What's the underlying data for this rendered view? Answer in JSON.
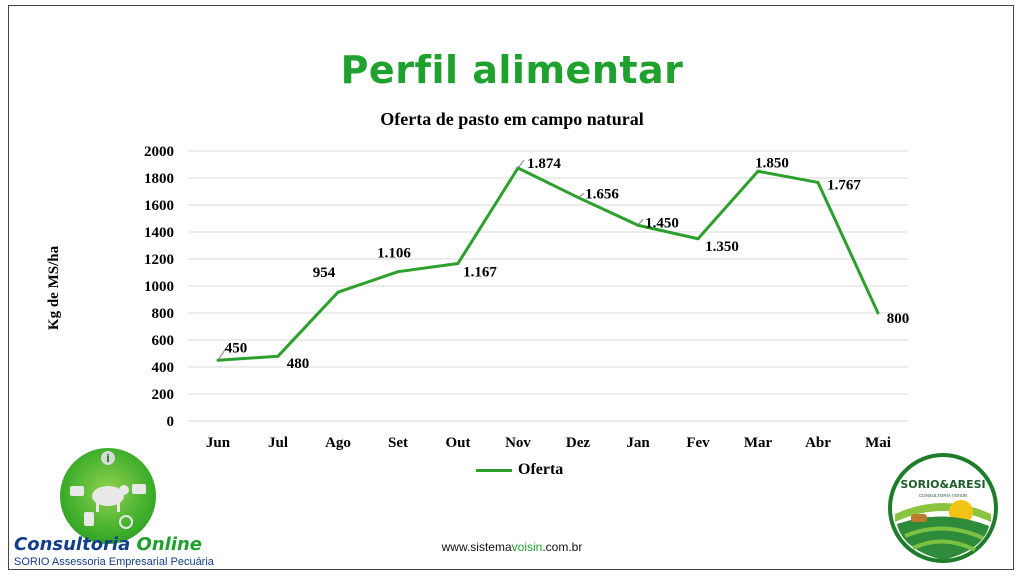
{
  "page_title": "Perfil alimentar",
  "footer": {
    "prefix": "www.sistema",
    "accent": "voisin",
    "suffix": ".com.br"
  },
  "logo_left": {
    "brand_part1": "Consultoria ",
    "brand_part2": "Online",
    "subtitle": "SORIO Assessoria Empresarial Pecuária"
  },
  "logo_right": {
    "name": "SORIO&ARESI",
    "tagline": "CONSULTORIA VOISIN"
  },
  "colors": {
    "title_green": "#1fa12e",
    "series_green": "#2ca02c",
    "brand_blue": "#123e8a"
  },
  "chart_data": {
    "type": "line",
    "title": "Oferta de pasto em campo natural",
    "xlabel": "",
    "ylabel": "Kg de MS/ha",
    "categories": [
      "Jun",
      "Jul",
      "Ago",
      "Set",
      "Out",
      "Nov",
      "Dez",
      "Jan",
      "Fev",
      "Mar",
      "Abr",
      "Mai"
    ],
    "series": [
      {
        "name": "Oferta",
        "values": [
          450,
          480,
          954,
          1106,
          1167,
          1874,
          1656,
          1450,
          1350,
          1850,
          1767,
          800
        ],
        "labels": [
          "450",
          "480",
          "954",
          "1.106",
          "1.167",
          "1.874",
          "1.656",
          "1.450",
          "1.350",
          "1.850",
          "1.767",
          "800"
        ]
      }
    ],
    "ylim": [
      0,
      2000
    ],
    "yticks": [
      0,
      200,
      400,
      600,
      800,
      1000,
      1200,
      1400,
      1600,
      1800,
      2000
    ],
    "grid": true,
    "legend_position": "bottom"
  }
}
